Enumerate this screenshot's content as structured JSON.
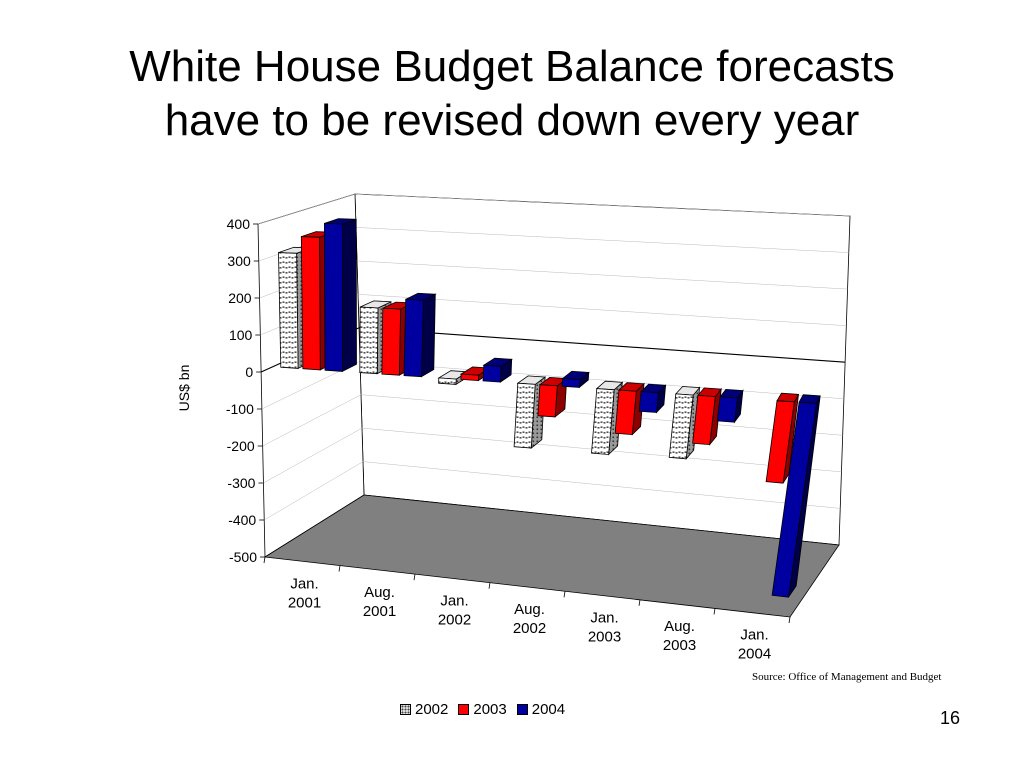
{
  "title": {
    "line1": "White House Budget Balance forecasts",
    "line2": "have to be revised down every year"
  },
  "source": "Source: Office of Management and Budget",
  "page_number": "16",
  "colors": {
    "series_2003": "#ff0000",
    "series_2004": "#0000a0",
    "floor": "#808080",
    "series_2002_pattern": "#ffffff"
  },
  "chart_data": {
    "type": "bar",
    "subtype": "3d-clustered-column",
    "categories": [
      "Jan. 2001",
      "Aug. 2001",
      "Jan. 2002",
      "Aug. 2002",
      "Jan. 2003",
      "Aug. 2003",
      "Jan. 2004"
    ],
    "category_lines": [
      [
        "Jan.",
        "2001"
      ],
      [
        "Aug.",
        "2001"
      ],
      [
        "Jan.",
        "2002"
      ],
      [
        "Aug.",
        "2002"
      ],
      [
        "Jan.",
        "2003"
      ],
      [
        "Aug.",
        "2003"
      ],
      [
        "Jan.",
        "2004"
      ]
    ],
    "series": [
      {
        "name": "2002",
        "values": [
          313,
          176,
          -14,
          -165,
          -165,
          -160,
          null
        ]
      },
      {
        "name": "2003",
        "values": [
          359,
          176,
          14,
          -80,
          -110,
          -120,
          -200
        ]
      },
      {
        "name": "2004",
        "values": [
          397,
          203,
          41,
          20,
          -50,
          -60,
          -475
        ]
      }
    ],
    "ylabel": "US$ bn",
    "xlabel": "",
    "ylim": [
      -500,
      400
    ],
    "yticks": [
      400,
      300,
      200,
      100,
      0,
      -100,
      -200,
      -300,
      -400,
      -500
    ],
    "ytick_labels": [
      "400",
      "300",
      "200",
      "100",
      "0",
      "-100",
      "-200",
      "-300",
      "-400",
      "-500"
    ],
    "grid": true,
    "legend": "bottom"
  }
}
